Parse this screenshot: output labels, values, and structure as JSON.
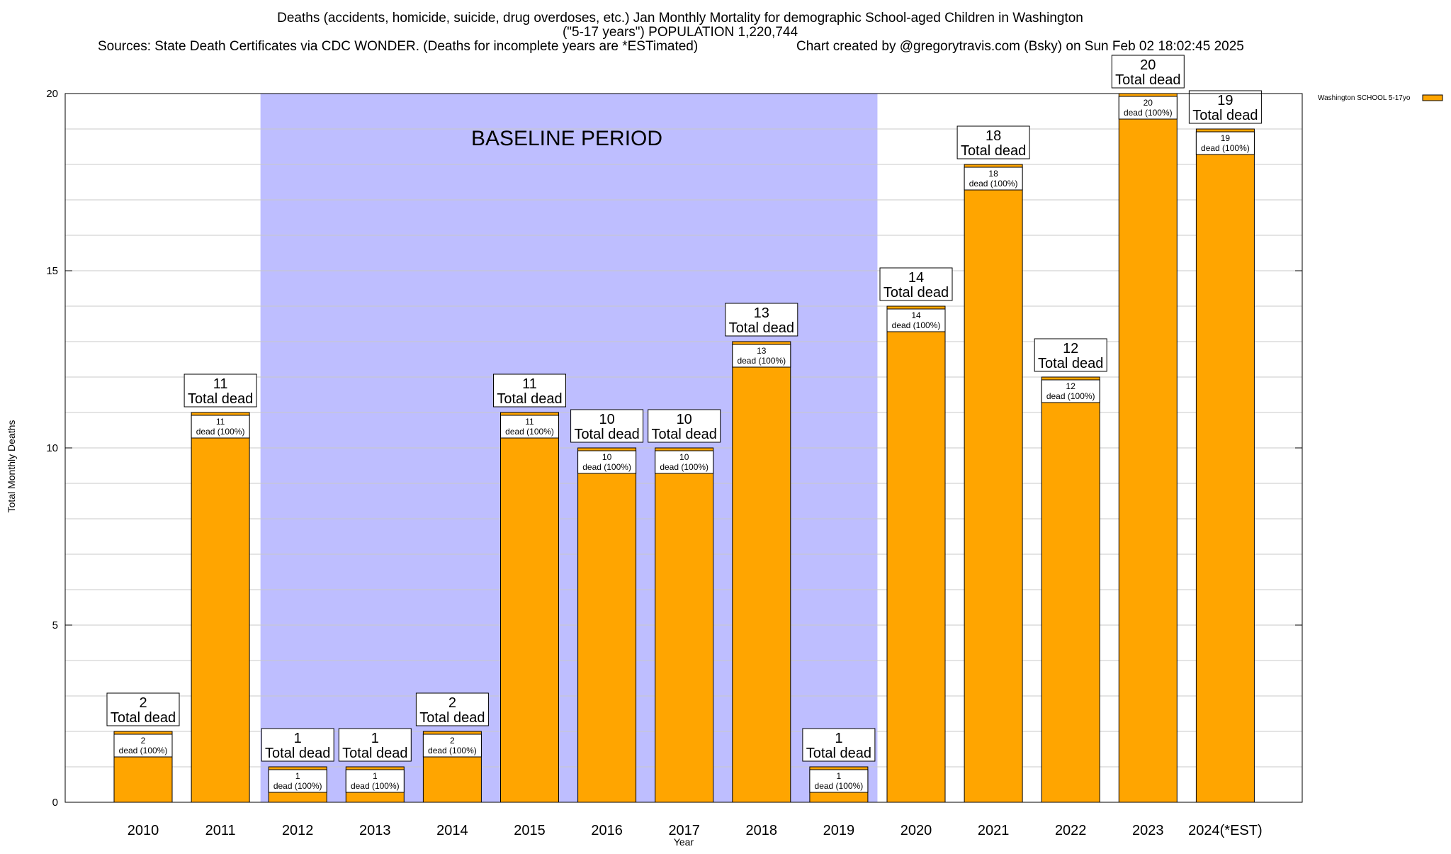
{
  "chart_data": {
    "type": "bar",
    "title_lines": [
      "Deaths (accidents, homicide, suicide, drug overdoses, etc.) Jan Monthly Mortality for demographic School-aged Children in Washington",
      "(\"5-17 years\") POPULATION 1,220,744"
    ],
    "sources_text": "Sources: State Death Certificates via CDC WONDER. (Deaths for incomplete years are *ESTimated)",
    "credit_text": "Chart created by @gregorytravis.com (Bsky) on Sun Feb 02 18:02:45 2025",
    "xlabel": "Year",
    "ylabel": "Total Monthly Deaths",
    "ylim": [
      0,
      20
    ],
    "yticks": [
      0,
      5,
      10,
      15,
      20
    ],
    "minor_grid_step": 1,
    "grid": true,
    "legend_position": "top-right",
    "categories": [
      "2010",
      "2011",
      "2012",
      "2013",
      "2014",
      "2015",
      "2016",
      "2017",
      "2018",
      "2019",
      "2020",
      "2021",
      "2022",
      "2023",
      "2024(*EST)"
    ],
    "series": [
      {
        "name": "Washington SCHOOL 5-17yo",
        "color": "#FFA500",
        "values": [
          2,
          11,
          1,
          1,
          2,
          11,
          10,
          10,
          13,
          1,
          14,
          18,
          12,
          20,
          19
        ]
      }
    ],
    "total_label": "Total dead",
    "inner_label_suffix": "dead (100%)",
    "baseline": {
      "label": "BASELINE PERIOD",
      "from": "2012",
      "to": "2019",
      "color": "#BEBEFF"
    }
  }
}
